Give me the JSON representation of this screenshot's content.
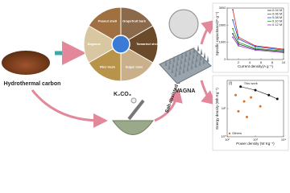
{
  "labels": {
    "hydrothermal": "Hydrothermal carbon",
    "k2co3": "K₂CO₃",
    "pyrolysis": "Salt-assisted pyrolysis",
    "vagna": "VAGNA"
  },
  "biomass": [
    "Grapefruit bark",
    "Tamarind shell",
    "Sugar cane",
    "Rice husk",
    "Bagasse",
    "Peanut shell"
  ],
  "capacitance_chart": {
    "type": "line",
    "y_label": "Specific capacitance(F g⁻¹)",
    "x_label": "Current density(A g⁻¹)",
    "x": [
      1,
      2,
      5,
      10
    ],
    "xlim": [
      0,
      10
    ],
    "ylim": [
      0,
      3000
    ],
    "xticks": [
      2,
      4,
      6,
      8,
      10
    ],
    "yticks": [
      0,
      1000,
      2000,
      3000
    ],
    "series": [
      {
        "name": "0.04 M",
        "color": "#333333",
        "values": [
          1500,
          900,
          600,
          450
        ]
      },
      {
        "name": "0.06 M",
        "color": "#d62728",
        "values": [
          2900,
          1300,
          800,
          600
        ]
      },
      {
        "name": "0.08 M",
        "color": "#1f4fd6",
        "values": [
          2300,
          1200,
          750,
          550
        ]
      },
      {
        "name": "0.10 M",
        "color": "#2ca02c",
        "values": [
          1800,
          1000,
          650,
          500
        ]
      },
      {
        "name": "0.12 M",
        "color": "#9b30c9",
        "values": [
          1300,
          800,
          550,
          400
        ]
      }
    ]
  },
  "ragone_chart": {
    "type": "scatter",
    "panel": "(f)",
    "x_label": "Power density (W Kg⁻¹)",
    "y_label": "Energy density (Wh Kg⁻¹)",
    "log": true,
    "xlim": [
      100,
      10000
    ],
    "ylim": [
      1,
      100
    ],
    "xticks": [
      {
        "value": 100,
        "label": "10²"
      },
      {
        "value": 1000,
        "label": "10³"
      },
      {
        "value": 10000,
        "label": "10⁴"
      }
    ],
    "yticks": [
      {
        "value": 1,
        "label": "10⁰"
      },
      {
        "value": 10,
        "label": "10¹"
      }
    ],
    "series": [
      {
        "name": "This work",
        "color": "#111111",
        "x": [
          300,
          1000,
          3000,
          6000
        ],
        "values": [
          60,
          45,
          30,
          22
        ]
      },
      {
        "name": "Others",
        "color": "#e07020",
        "x": [
          200,
          400,
          700,
          1500,
          250,
          500
        ],
        "values": [
          30,
          18,
          25,
          12,
          8,
          5
        ]
      }
    ]
  }
}
